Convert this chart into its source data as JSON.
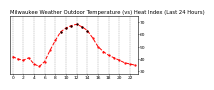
{
  "title": "Milwaukee Weather Outdoor Temperature (vs) Heat Index (Last 24 Hours)",
  "line1_color": "#ff0000",
  "line2_color": "#000000",
  "bg_color": "#ffffff",
  "grid_color": "#999999",
  "x_values": [
    0,
    1,
    2,
    3,
    4,
    5,
    6,
    7,
    8,
    9,
    10,
    11,
    12,
    13,
    14,
    15,
    16,
    17,
    18,
    19,
    20,
    21,
    22,
    23
  ],
  "temp_values": [
    42,
    40,
    39,
    41,
    36,
    34,
    38,
    47,
    55,
    62,
    65,
    67,
    68,
    66,
    63,
    57,
    50,
    46,
    43,
    41,
    39,
    37,
    36,
    35
  ],
  "heat_values": [
    null,
    null,
    null,
    null,
    null,
    null,
    null,
    null,
    null,
    62,
    65,
    67,
    68,
    66,
    63,
    null,
    null,
    null,
    null,
    null,
    null,
    null,
    null,
    null
  ],
  "ylim": [
    28,
    75
  ],
  "yticks": [
    30,
    40,
    50,
    60,
    70
  ],
  "xlim": [
    -0.5,
    23.5
  ],
  "xtick_positions": [
    0,
    2,
    4,
    6,
    8,
    10,
    12,
    14,
    16,
    18,
    20,
    22
  ],
  "xtick_labels": [
    "0",
    "2",
    "4",
    "6",
    "8",
    "10",
    "12",
    "14",
    "16",
    "18",
    "20",
    "22"
  ],
  "grid_positions": [
    0,
    2,
    4,
    6,
    8,
    10,
    12,
    14,
    16,
    18,
    20,
    22
  ],
  "title_fontsize": 3.8,
  "tick_fontsize": 3.2,
  "linewidth": 0.7,
  "markersize": 1.2
}
